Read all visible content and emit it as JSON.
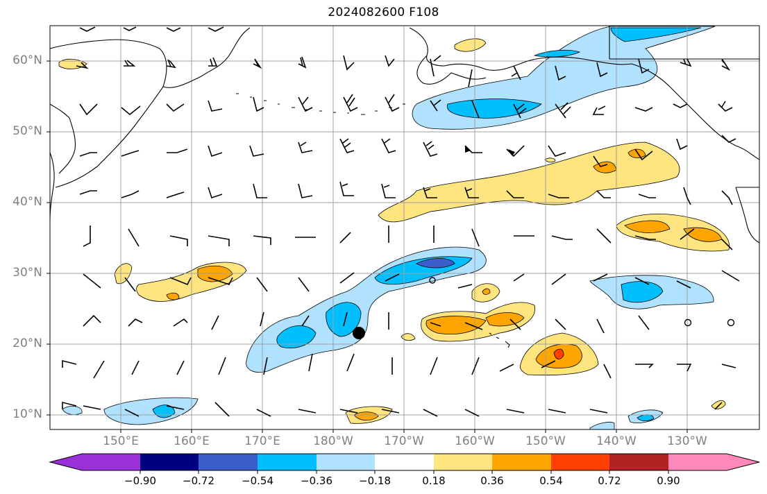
{
  "title": "2024082600 F108",
  "lat_labels": [
    "60°N",
    "50°N",
    "40°N",
    "30°N",
    "20°N",
    "10°N"
  ],
  "lon_labels": [
    "150°E",
    "160°E",
    "170°E",
    "180°W",
    "170°W",
    "160°W",
    "150°W",
    "140°W",
    "130°W"
  ],
  "colorbar": {
    "ticks": [
      "−0.90",
      "−0.72",
      "−0.54",
      "−0.36",
      "−0.18",
      "0.18",
      "0.36",
      "0.54",
      "0.72",
      "0.90"
    ],
    "colors": [
      "#9b30d8",
      "#000080",
      "#3a5fcd",
      "#00bfff",
      "#b0e2ff",
      "#ffffff",
      "#ffe57f",
      "#ffa500",
      "#ff4000",
      "#b22222",
      "#ff88bb"
    ]
  },
  "colors": {
    "land_outline": "#000000",
    "grid": "#a0a0a0",
    "tick_text": "#808080"
  }
}
